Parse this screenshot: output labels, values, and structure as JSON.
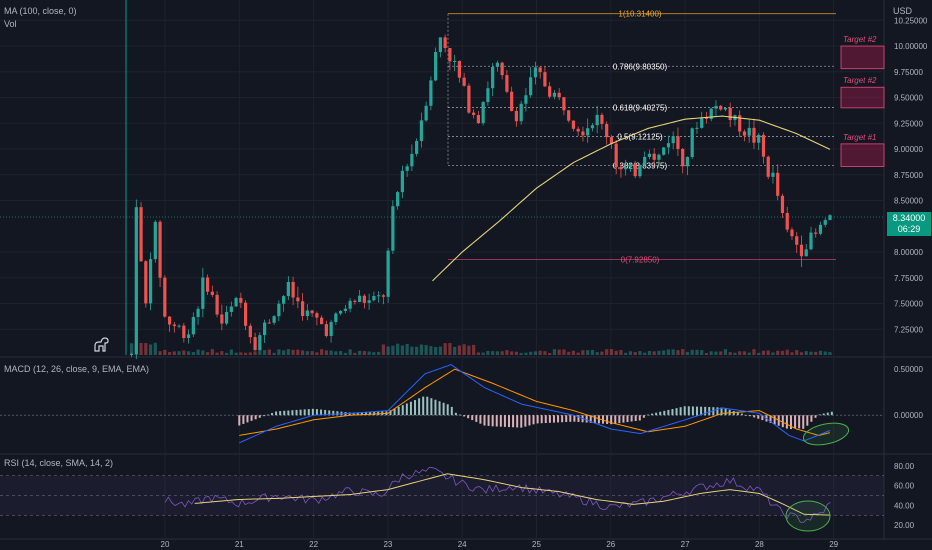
{
  "currency": "USD",
  "legends": {
    "ma": "MA (100, close, 0)",
    "vol": "Vol",
    "macd": "MACD (12, 26, close, 9, EMA, EMA)",
    "rsi": "RSI (14, close, SMA, 14, 2)"
  },
  "price_badge": {
    "price": "8.34000",
    "countdown": "06:29"
  },
  "colors": {
    "background": "#131722",
    "up": "#26a69a",
    "down": "#ef5350",
    "ma": "#e6d37a",
    "fib_line": "#b2b5be",
    "fib_top": "#f5a623",
    "fib_bottom": "#e84a7a",
    "target_fill": "#9c1b46",
    "macd_line": "#2962ff",
    "signal_line": "#ff9800",
    "rsi_line": "#7e57c2",
    "rsi_ma": "#e6d37a",
    "ellipse": "#4caf50"
  },
  "chart_data": [
    {
      "type": "candlestick",
      "x_ticks": [
        "20",
        "21",
        "22",
        "23",
        "24",
        "25",
        "26",
        "27",
        "28",
        "29"
      ],
      "y_ticks": [
        "10.25000",
        "10.00000",
        "9.75000",
        "9.50000",
        "9.25000",
        "9.00000",
        "8.75000",
        "8.50000",
        "8.00000",
        "7.75000",
        "7.50000",
        "7.25000"
      ],
      "ylim": [
        7.0,
        10.35
      ],
      "xlim": [
        19.55,
        29.3
      ],
      "price_anchors": [
        [
          19.55,
          7.0
        ],
        [
          19.62,
          8.65
        ],
        [
          19.72,
          7.3
        ],
        [
          19.85,
          8.35
        ],
        [
          20.0,
          7.35
        ],
        [
          20.1,
          7.3
        ],
        [
          20.3,
          7.2
        ],
        [
          20.55,
          7.75
        ],
        [
          20.75,
          7.3
        ],
        [
          21.0,
          7.55
        ],
        [
          21.2,
          7.1
        ],
        [
          21.4,
          7.35
        ],
        [
          21.65,
          7.65
        ],
        [
          21.9,
          7.4
        ],
        [
          22.2,
          7.25
        ],
        [
          22.4,
          7.45
        ],
        [
          22.6,
          7.55
        ],
        [
          22.8,
          7.5
        ],
        [
          22.95,
          7.6
        ],
        [
          23.05,
          8.3
        ],
        [
          23.2,
          8.8
        ],
        [
          23.35,
          9.0
        ],
        [
          23.5,
          9.45
        ],
        [
          23.7,
          10.1
        ],
        [
          23.85,
          9.9
        ],
        [
          24.05,
          9.5
        ],
        [
          24.2,
          9.3
        ],
        [
          24.45,
          9.85
        ],
        [
          24.7,
          9.3
        ],
        [
          25.0,
          9.75
        ],
        [
          25.2,
          9.55
        ],
        [
          25.4,
          9.4
        ],
        [
          25.6,
          9.2
        ],
        [
          25.8,
          9.3
        ],
        [
          26.0,
          9.1
        ],
        [
          26.1,
          8.8
        ],
        [
          26.3,
          8.75
        ],
        [
          26.5,
          9.05
        ],
        [
          26.6,
          8.85
        ],
        [
          26.8,
          9.15
        ],
        [
          27.0,
          8.9
        ],
        [
          27.15,
          9.25
        ],
        [
          27.3,
          9.35
        ],
        [
          27.5,
          9.45
        ],
        [
          27.6,
          9.3
        ],
        [
          27.8,
          9.2
        ],
        [
          28.0,
          9.05
        ],
        [
          28.1,
          8.8
        ],
        [
          28.2,
          8.7
        ],
        [
          28.35,
          8.2
        ],
        [
          28.55,
          8.05
        ],
        [
          28.75,
          8.15
        ],
        [
          28.92,
          8.34
        ]
      ],
      "ma_anchors": [
        [
          23.6,
          7.72
        ],
        [
          24.0,
          8.0
        ],
        [
          24.5,
          8.3
        ],
        [
          25.0,
          8.62
        ],
        [
          25.5,
          8.87
        ],
        [
          26.0,
          9.05
        ],
        [
          26.5,
          9.2
        ],
        [
          27.0,
          9.29
        ],
        [
          27.5,
          9.32
        ],
        [
          28.0,
          9.28
        ],
        [
          28.5,
          9.15
        ],
        [
          29.0,
          8.98
        ]
      ],
      "fib_levels": [
        {
          "ratio": 1,
          "price": 10.314,
          "label": "1(10.31400)"
        },
        {
          "ratio": 0.786,
          "price": 9.8035,
          "label": "0.786(9.80350)"
        },
        {
          "ratio": 0.618,
          "price": 9.40275,
          "label": "0.618(9.40275)"
        },
        {
          "ratio": 0.5,
          "price": 9.12125,
          "label": "0.5(9.12125)"
        },
        {
          "ratio": 0.382,
          "price": 8.83975,
          "label": "0.382(8.83975)"
        },
        {
          "ratio": 0,
          "price": 7.9285,
          "label": "0(7.92850)"
        }
      ],
      "targets": [
        {
          "label": "Target #2",
          "top": 10.0,
          "bottom": 9.78
        },
        {
          "label": "Target #2",
          "top": 9.6,
          "bottom": 9.4
        },
        {
          "label": "Target #1",
          "top": 9.05,
          "bottom": 8.83
        }
      ],
      "current_price": 8.34
    },
    {
      "type": "macd",
      "y_ticks": [
        "0.50000",
        "0.00000"
      ],
      "ylim": [
        -0.4,
        0.6
      ],
      "macd_anchors": [
        [
          21.0,
          -0.3
        ],
        [
          21.5,
          -0.12
        ],
        [
          22.0,
          0.0
        ],
        [
          22.5,
          0.02
        ],
        [
          23.0,
          0.05
        ],
        [
          23.5,
          0.45
        ],
        [
          23.85,
          0.55
        ],
        [
          24.3,
          0.3
        ],
        [
          24.8,
          0.12
        ],
        [
          25.5,
          0.0
        ],
        [
          26.0,
          -0.15
        ],
        [
          26.4,
          -0.2
        ],
        [
          27.0,
          -0.05
        ],
        [
          27.5,
          0.08
        ],
        [
          28.0,
          0.02
        ],
        [
          28.4,
          -0.22
        ],
        [
          28.6,
          -0.28
        ],
        [
          29.0,
          -0.15
        ]
      ],
      "signal_anchors": [
        [
          21.0,
          -0.22
        ],
        [
          21.5,
          -0.15
        ],
        [
          22.0,
          -0.05
        ],
        [
          22.5,
          0.0
        ],
        [
          23.0,
          0.02
        ],
        [
          23.5,
          0.3
        ],
        [
          23.9,
          0.5
        ],
        [
          24.4,
          0.35
        ],
        [
          25.0,
          0.15
        ],
        [
          25.5,
          0.05
        ],
        [
          26.0,
          -0.08
        ],
        [
          26.5,
          -0.18
        ],
        [
          27.0,
          -0.12
        ],
        [
          27.5,
          0.02
        ],
        [
          28.0,
          0.05
        ],
        [
          28.5,
          -0.15
        ],
        [
          28.8,
          -0.22
        ],
        [
          29.0,
          -0.18
        ]
      ]
    },
    {
      "type": "rsi",
      "y_ticks": [
        "80.00",
        "60.00",
        "40.00",
        "20.00"
      ],
      "ylim": [
        10,
        90
      ],
      "bands": [
        70,
        50,
        30
      ],
      "rsi_anchors": [
        [
          20.0,
          45
        ],
        [
          20.3,
          40
        ],
        [
          20.6,
          48
        ],
        [
          21.0,
          42
        ],
        [
          21.5,
          50
        ],
        [
          22.0,
          45
        ],
        [
          22.5,
          55
        ],
        [
          22.9,
          50
        ],
        [
          23.2,
          70
        ],
        [
          23.6,
          75
        ],
        [
          24.0,
          62
        ],
        [
          24.3,
          55
        ],
        [
          24.7,
          60
        ],
        [
          25.0,
          55
        ],
        [
          25.5,
          48
        ],
        [
          26.0,
          38
        ],
        [
          26.4,
          42
        ],
        [
          26.8,
          50
        ],
        [
          27.2,
          58
        ],
        [
          27.6,
          65
        ],
        [
          28.0,
          55
        ],
        [
          28.3,
          32
        ],
        [
          28.6,
          25
        ],
        [
          28.8,
          30
        ],
        [
          29.0,
          45
        ]
      ],
      "rsi_ma_anchors": [
        [
          20.4,
          42
        ],
        [
          21.0,
          46
        ],
        [
          21.5,
          47
        ],
        [
          22.0,
          49
        ],
        [
          22.5,
          51
        ],
        [
          23.0,
          56
        ],
        [
          23.5,
          66
        ],
        [
          23.8,
          72
        ],
        [
          24.3,
          66
        ],
        [
          24.8,
          58
        ],
        [
          25.3,
          54
        ],
        [
          25.8,
          46
        ],
        [
          26.3,
          41
        ],
        [
          26.7,
          44
        ],
        [
          27.2,
          52
        ],
        [
          27.6,
          56
        ],
        [
          28.0,
          52
        ],
        [
          28.3,
          42
        ],
        [
          28.6,
          31
        ],
        [
          29.0,
          30
        ]
      ]
    }
  ]
}
